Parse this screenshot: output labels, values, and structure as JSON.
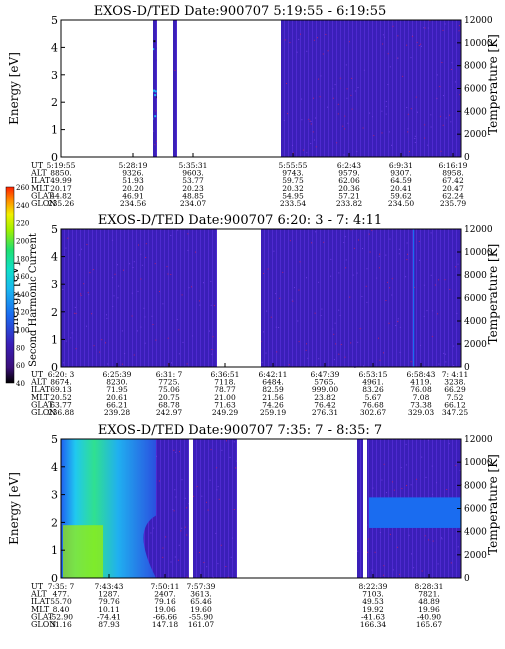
{
  "colors": {
    "background": "#3a1fb8",
    "stripe": "#5a2ed4",
    "noise": "#b02070",
    "colorbar": [
      "#000000",
      "#3b0f7a",
      "#3a1fb8",
      "#1a6cf0",
      "#1ab8f0",
      "#10e0c8",
      "#20e070",
      "#a0f000",
      "#f0f000",
      "#ff9000",
      "#ff2000"
    ]
  },
  "chart_data": [
    {
      "type": "heatmap",
      "title": "EXOS-D/TED   Date:900707  5:19:55 - 6:19:55",
      "ylabel": "Energy [eV]",
      "y2label": "Temperature [K]",
      "ylim": [
        0,
        5
      ],
      "y2lim": [
        0,
        12000
      ],
      "yticks": [
        "0",
        "1",
        "2",
        "3",
        "4",
        "5"
      ],
      "y2ticks": [
        "0",
        "2000",
        "4000",
        "6000",
        "8000",
        "10000",
        "12000"
      ],
      "gaps": [
        [
          0.0,
          0.23
        ],
        [
          0.24,
          0.28
        ],
        [
          0.29,
          0.55
        ]
      ],
      "row_labels": [
        "UT",
        "ALT",
        "ILAT",
        "MLT",
        "GLAT",
        "GLON"
      ],
      "columns": [
        {
          "x": 0.0,
          "values": [
            "5:19:55",
            "8850.",
            "49.99",
            "20.17",
            "44.82",
            "235.26"
          ]
        },
        {
          "x": 0.18,
          "values": [
            "5:28:19",
            "9326.",
            "51.93",
            "20.20",
            "46.91",
            "234.56"
          ]
        },
        {
          "x": 0.33,
          "values": [
            "5:35:31",
            "9603.",
            "53.77",
            "20.23",
            "48.85",
            "234.07"
          ]
        },
        {
          "x": 0.58,
          "values": [
            "5:55:55",
            "9743.",
            "59.75",
            "20.32",
            "54.95",
            "233.54"
          ]
        },
        {
          "x": 0.72,
          "values": [
            "6:2:43",
            "9579.",
            "62.06",
            "20.36",
            "57.21",
            "233.82"
          ]
        },
        {
          "x": 0.85,
          "values": [
            "6:9:31",
            "9307.",
            "64.59",
            "20.41",
            "59.62",
            "234.50"
          ]
        },
        {
          "x": 0.98,
          "values": [
            "6:16:19",
            "8958.",
            "67.42",
            "20.47",
            "62.24",
            "235.79"
          ]
        }
      ]
    },
    {
      "type": "heatmap",
      "title": "EXOS-D/TED   Date:900707  6:20: 3 - 7: 4:11",
      "ylabel": "Energy [eV]",
      "y2label": "Temperature [K]",
      "ylim": [
        0,
        5
      ],
      "y2lim": [
        0,
        12000
      ],
      "yticks": [
        "0",
        "1",
        "2",
        "3",
        "4",
        "5"
      ],
      "y2ticks": [
        "0",
        "2000",
        "4000",
        "6000",
        "8000",
        "10000",
        "12000"
      ],
      "gaps": [
        [
          0.39,
          0.5
        ]
      ],
      "row_labels": [
        "UT",
        "ALT",
        "ILAT",
        "MLT",
        "GLAT",
        "GLON"
      ],
      "columns": [
        {
          "x": 0.0,
          "values": [
            "6:20: 3",
            "8674.",
            "69.13",
            "20.52",
            "63.77",
            "236.88"
          ]
        },
        {
          "x": 0.14,
          "values": [
            "6:25:39",
            "8230.",
            "71.95",
            "20.61",
            "66.21",
            "239.28"
          ]
        },
        {
          "x": 0.27,
          "values": [
            "6:31: 7",
            "7725.",
            "75.06",
            "20.75",
            "68.78",
            "242.97"
          ]
        },
        {
          "x": 0.41,
          "values": [
            "6:36:51",
            "7118.",
            "78.77",
            "21.00",
            "71.63",
            "249.29"
          ]
        },
        {
          "x": 0.53,
          "values": [
            "6:42:11",
            "6484.",
            "82.59",
            "21.56",
            "74.26",
            "259.19"
          ]
        },
        {
          "x": 0.66,
          "values": [
            "6:47:39",
            "5765.",
            "999.00",
            "23.82",
            "76.42",
            "276.31"
          ]
        },
        {
          "x": 0.78,
          "values": [
            "6:53:15",
            "4961.",
            "83.26",
            "5.67",
            "76.68",
            "302.67"
          ]
        },
        {
          "x": 0.9,
          "values": [
            "6:58:43",
            "4119.",
            "76.08",
            "7.08",
            "73.38",
            "329.03"
          ]
        },
        {
          "x": 1.0,
          "values": [
            "7: 4:11",
            "3238.",
            "66.29",
            "7.52",
            "66.12",
            "347.25"
          ]
        }
      ]
    },
    {
      "type": "heatmap",
      "title": "EXOS-D/TED   Date:900707  7:35: 7 - 8:35: 7",
      "ylabel": "Energy [eV]",
      "y2label": "Temperature [K]",
      "ylim": [
        0,
        5
      ],
      "y2lim": [
        0,
        12000
      ],
      "yticks": [
        "0",
        "1",
        "2",
        "3",
        "4",
        "5"
      ],
      "y2ticks": [
        "0",
        "2000",
        "4000",
        "6000",
        "8000",
        "10000",
        "12000"
      ],
      "gaps": [
        [
          0.32,
          0.33
        ],
        [
          0.44,
          0.74
        ],
        [
          0.755,
          0.765
        ]
      ],
      "row_labels": [
        "UT",
        "ALT",
        "ILAT",
        "MLT",
        "GLAT",
        "GLON"
      ],
      "columns": [
        {
          "x": 0.0,
          "values": [
            "7:35: 7",
            "477.",
            "55.70",
            "8.40",
            "-52.90",
            "31.16"
          ]
        },
        {
          "x": 0.12,
          "values": [
            "7:43:43",
            "1287.",
            "79.76",
            "10.11",
            "-74.41",
            "87.93"
          ]
        },
        {
          "x": 0.26,
          "values": [
            "7:50:11",
            "2407.",
            "79.16",
            "19.06",
            "-66.66",
            "147.18"
          ]
        },
        {
          "x": 0.35,
          "values": [
            "7:57:39",
            "3613.",
            "65.46",
            "19.60",
            "-55.90",
            "161.07"
          ]
        },
        {
          "x": 0.78,
          "values": [
            "8:22:39",
            "7103.",
            "49.53",
            "19.92",
            "-41.63",
            "166.34"
          ]
        },
        {
          "x": 0.92,
          "values": [
            "8:28:31",
            "7821.",
            "48.89",
            "19.96",
            "-40.90",
            "165.67"
          ]
        }
      ]
    }
  ],
  "colorbar": {
    "label": "Second Harmonic Current",
    "ticks": [
      "40",
      "60",
      "80",
      "100",
      "120",
      "140",
      "160",
      "180",
      "200",
      "220",
      "240",
      "260"
    ]
  }
}
